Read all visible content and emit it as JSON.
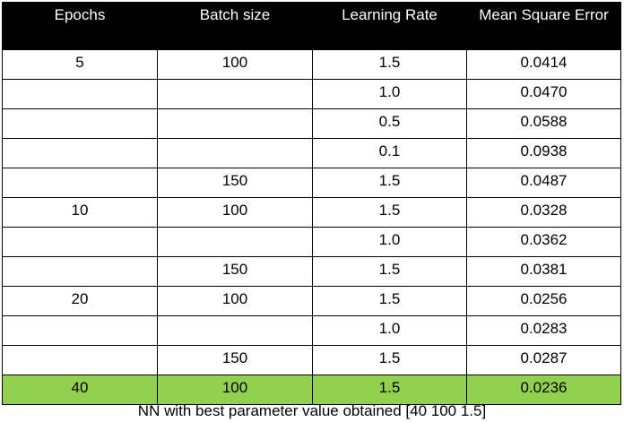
{
  "table": {
    "headers": [
      "Epochs",
      "Batch size",
      "Learning Rate",
      "Mean Square Error"
    ],
    "rows": [
      {
        "epochs": "5",
        "batch": "100",
        "lr": "1.5",
        "mse": "0.0414"
      },
      {
        "epochs": "",
        "batch": "",
        "lr": "1.0",
        "mse": "0.0470"
      },
      {
        "epochs": "",
        "batch": "",
        "lr": "0.5",
        "mse": "0.0588"
      },
      {
        "epochs": "",
        "batch": "",
        "lr": "0.1",
        "mse": "0.0938"
      },
      {
        "epochs": "",
        "batch": "150",
        "lr": "1.5",
        "mse": "0.0487"
      },
      {
        "epochs": "10",
        "batch": "100",
        "lr": "1.5",
        "mse": "0.0328"
      },
      {
        "epochs": "",
        "batch": "",
        "lr": "1.0",
        "mse": "0.0362"
      },
      {
        "epochs": "",
        "batch": "150",
        "lr": "1.5",
        "mse": "0.0381"
      },
      {
        "epochs": "20",
        "batch": "100",
        "lr": "1.5",
        "mse": "0.0256"
      },
      {
        "epochs": "",
        "batch": "",
        "lr": "1.0",
        "mse": "0.0283"
      },
      {
        "epochs": "",
        "batch": "150",
        "lr": "1.5",
        "mse": "0.0287"
      },
      {
        "epochs": "40",
        "batch": "100",
        "lr": "1.5",
        "mse": "0.0236"
      }
    ],
    "highlight_row_index": 11,
    "highlight_color": "#92d050",
    "header_bg": "#000000"
  },
  "caption": "NN with best parameter value obtained [40 100 1.5]"
}
